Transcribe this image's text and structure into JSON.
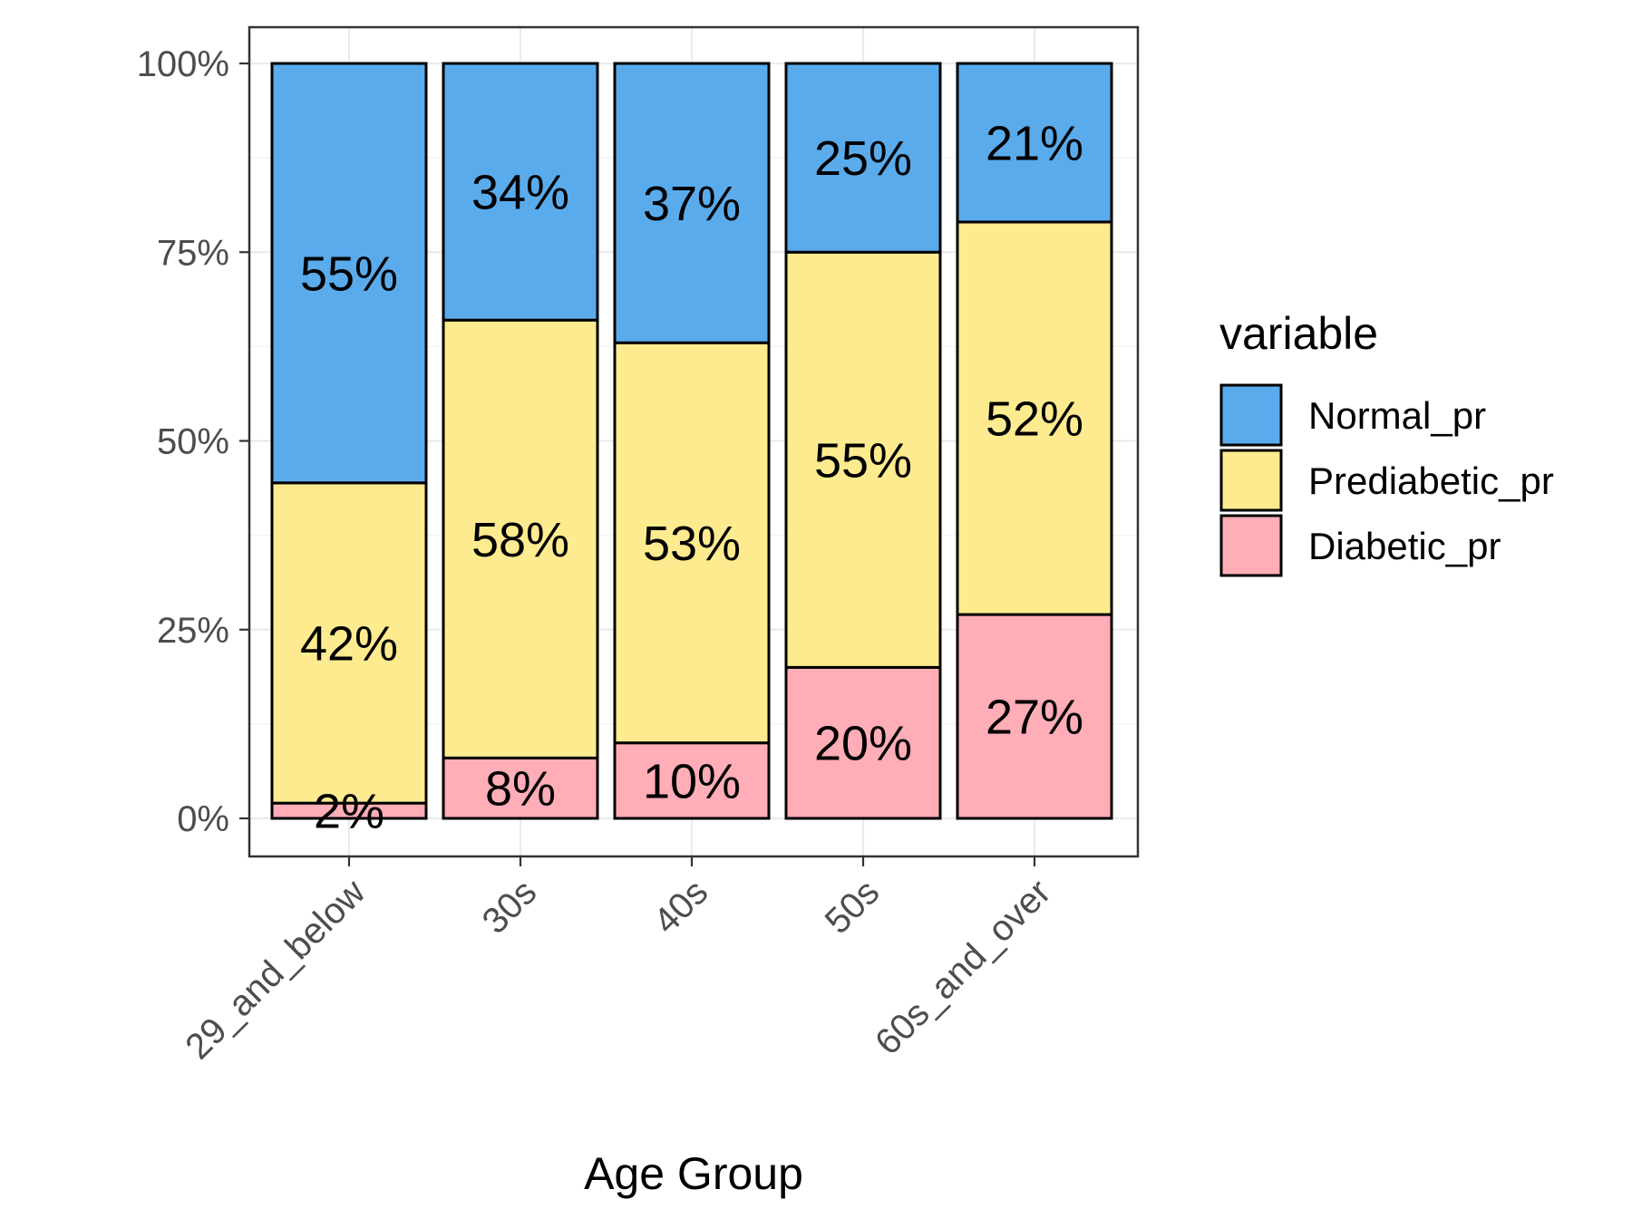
{
  "chart_data": {
    "type": "bar",
    "stacked": true,
    "categories": [
      "29_and_below",
      "30s",
      "40s",
      "50s",
      "60s_and_over"
    ],
    "series": [
      {
        "name": "Diabetic_pr",
        "color": "#ffadb7",
        "values": [
          2,
          8,
          10,
          20,
          27
        ],
        "labels": [
          "2%",
          "8%",
          "10%",
          "20%",
          "27%"
        ]
      },
      {
        "name": "Prediabetic_pr",
        "color": "#ffeb8f",
        "values": [
          42,
          58,
          53,
          55,
          52
        ],
        "labels": [
          "42%",
          "58%",
          "53%",
          "55%",
          "52%"
        ]
      },
      {
        "name": "Normal_pr",
        "color": "#5aabec",
        "values": [
          55,
          34,
          37,
          25,
          21
        ],
        "labels": [
          "55%",
          "34%",
          "37%",
          "25%",
          "21%"
        ]
      }
    ],
    "totals_percent": [
      100,
      100,
      100,
      100,
      100
    ],
    "ylim": [
      0,
      100
    ],
    "yticks": [
      0,
      25,
      50,
      75,
      100
    ],
    "ytick_labels": [
      "0%",
      "25%",
      "50%",
      "75%",
      "100%"
    ],
    "xlabel": "Age Group",
    "ylabel": "",
    "legend": {
      "title": "variable",
      "position": "right",
      "entries": [
        "Normal_pr",
        "Prediabetic_pr",
        "Diabetic_pr"
      ]
    },
    "grid": true
  }
}
